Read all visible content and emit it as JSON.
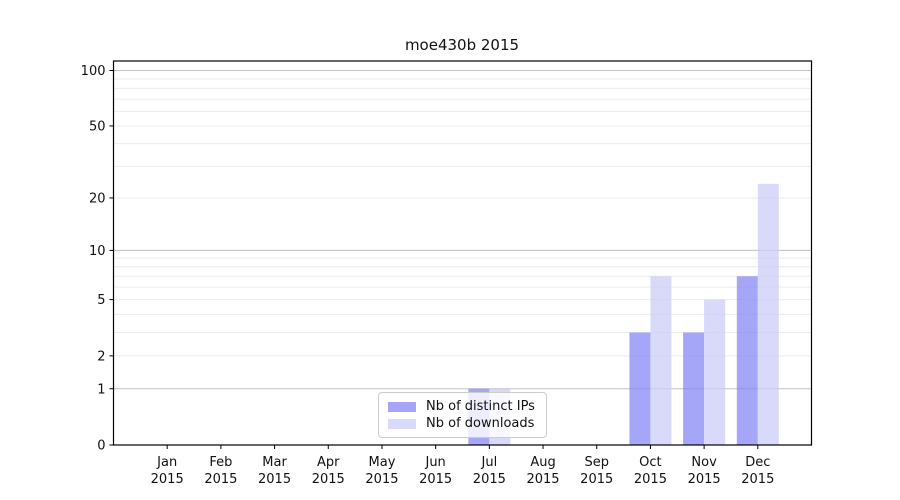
{
  "title": "moe430b 2015",
  "legend": {
    "items": [
      {
        "label": "Nb of distinct IPs"
      },
      {
        "label": "Nb of downloads"
      }
    ]
  },
  "chart_data": {
    "type": "bar",
    "title": "moe430b 2015",
    "categories": [
      "Jan 2015",
      "Feb 2015",
      "Mar 2015",
      "Apr 2015",
      "May 2015",
      "Jun 2015",
      "Jul 2015",
      "Aug 2015",
      "Sep 2015",
      "Oct 2015",
      "Nov 2015",
      "Dec 2015"
    ],
    "month_labels": [
      "Jan",
      "Feb",
      "Mar",
      "Apr",
      "May",
      "Jun",
      "Jul",
      "Aug",
      "Sep",
      "Oct",
      "Nov",
      "Dec"
    ],
    "year_label": "2015",
    "series": [
      {
        "name": "Nb of distinct IPs",
        "color": "rgba(132,132,246,0.72)",
        "values": [
          0,
          0,
          0,
          0,
          0,
          0,
          1,
          0,
          0,
          3,
          3,
          7
        ]
      },
      {
        "name": "Nb of downloads",
        "color": "rgba(202,202,246,0.72)",
        "values": [
          0,
          0,
          0,
          0,
          0,
          0,
          1,
          0,
          0,
          7,
          5,
          24
        ]
      }
    ],
    "yscale": "log1p",
    "ylim": [
      0,
      113
    ],
    "y_tick_values": [
      0,
      1,
      2,
      5,
      10,
      20,
      50,
      100
    ],
    "y_tick_labels": [
      "0",
      "1",
      "2",
      "5",
      "10",
      "20",
      "50",
      "100"
    ],
    "y_major_grid": [
      1,
      10,
      100
    ],
    "y_minor_grid": [
      2,
      3,
      4,
      5,
      6,
      7,
      8,
      9,
      20,
      30,
      40,
      50,
      60,
      70,
      80,
      90
    ],
    "grid": true,
    "legend_position": "lower center"
  },
  "colors": {
    "background": "#ffffff",
    "axis": "#000000",
    "text": "#111111",
    "major_grid": "#c0c0c0",
    "minor_grid": "#ebebeb",
    "legend_border": "#cccccc"
  }
}
